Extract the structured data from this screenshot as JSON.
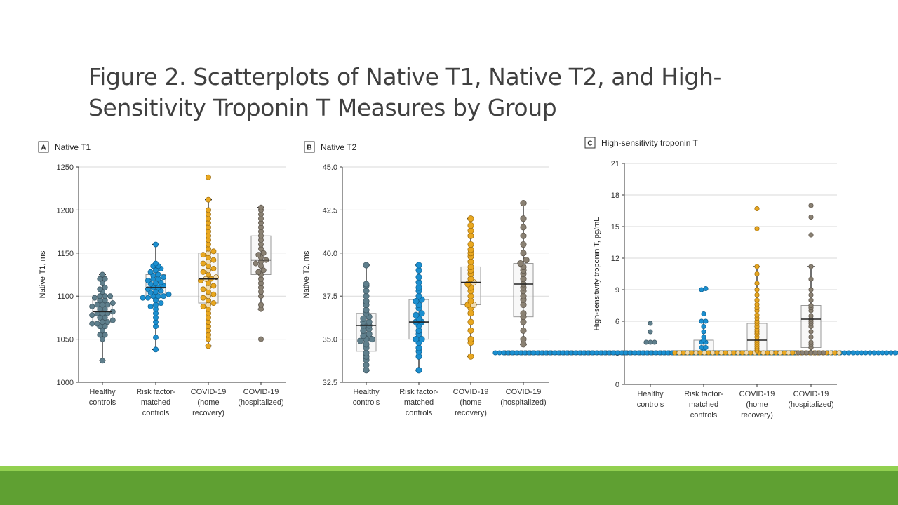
{
  "slide": {
    "title": "Figure 2. Scatterplots of Native T1, Native T2, and High-Sensitivity Troponin T Measures by Group"
  },
  "colors": {
    "accent_light": "#92d050",
    "accent_dark": "#5fa032",
    "grid": "#d9d9d9",
    "healthy": "#5f7f8c",
    "riskfactor": "#1b8fd0",
    "home": "#e9a821",
    "home_light": "#f0dcb3",
    "hosp": "#8a8173",
    "box_fill": "#f2f2f2",
    "box_stroke": "#9a9a9a"
  },
  "chart_data": [
    {
      "type": "scatter",
      "letter": "A",
      "title": "Native T1",
      "ylabel": "Native T1, ms",
      "ylim": [
        1000,
        1250
      ],
      "yticks": [
        1000,
        1050,
        1100,
        1150,
        1200,
        1250
      ],
      "categories": [
        [
          "Healthy",
          "controls"
        ],
        [
          "Risk factor-",
          "matched",
          "controls"
        ],
        [
          "COVID-19",
          "(home",
          "recovery)"
        ],
        [
          "COVID-19",
          "(hospitalized)"
        ]
      ],
      "series": [
        {
          "name": "Healthy controls",
          "min": 1025,
          "max": 1125,
          "q1": 1070,
          "median": 1082,
          "q3": 1100,
          "values": [
            1025,
            1050,
            1055,
            1055,
            1060,
            1065,
            1065,
            1068,
            1068,
            1070,
            1070,
            1072,
            1075,
            1075,
            1078,
            1080,
            1080,
            1080,
            1082,
            1085,
            1085,
            1088,
            1090,
            1090,
            1090,
            1092,
            1095,
            1095,
            1098,
            1100,
            1100,
            1100,
            1105,
            1108,
            1110,
            1115,
            1120,
            1120,
            1125
          ]
        },
        {
          "name": "Risk factor-matched controls",
          "min": 1038,
          "max": 1160,
          "q1": 1098,
          "median": 1110,
          "q3": 1125,
          "values": [
            1038,
            1052,
            1065,
            1070,
            1075,
            1080,
            1085,
            1088,
            1090,
            1092,
            1095,
            1098,
            1098,
            1100,
            1100,
            1100,
            1102,
            1104,
            1105,
            1106,
            1108,
            1110,
            1110,
            1112,
            1114,
            1115,
            1116,
            1118,
            1120,
            1120,
            1122,
            1124,
            1125,
            1128,
            1130,
            1132,
            1135,
            1135,
            1138,
            1160
          ]
        },
        {
          "name": "COVID-19 (home recovery)",
          "min": 1042,
          "max": 1212,
          "q1": 1092,
          "median": 1120,
          "q3": 1150,
          "values": [
            1042,
            1050,
            1055,
            1060,
            1065,
            1070,
            1075,
            1080,
            1085,
            1088,
            1090,
            1092,
            1095,
            1098,
            1100,
            1102,
            1105,
            1108,
            1110,
            1112,
            1115,
            1118,
            1120,
            1120,
            1122,
            1125,
            1128,
            1130,
            1132,
            1135,
            1138,
            1140,
            1142,
            1145,
            1148,
            1150,
            1152,
            1155,
            1160,
            1165,
            1170,
            1175,
            1180,
            1185,
            1190,
            1195,
            1200,
            1212,
            1238
          ]
        },
        {
          "name": "COVID-19 (hospitalized)",
          "min": 1085,
          "max": 1203,
          "q1": 1125,
          "median": 1142,
          "q3": 1170,
          "values": [
            1050,
            1085,
            1090,
            1100,
            1105,
            1110,
            1115,
            1120,
            1125,
            1128,
            1130,
            1135,
            1138,
            1140,
            1142,
            1145,
            1148,
            1150,
            1155,
            1160,
            1165,
            1170,
            1175,
            1180,
            1185,
            1190,
            1195,
            1200,
            1203
          ]
        }
      ]
    },
    {
      "type": "scatter",
      "letter": "B",
      "title": "Native T2",
      "ylabel": "Native T2, ms",
      "ylim": [
        32.5,
        45.0
      ],
      "yticks": [
        "32.5",
        "35.0",
        "37.5",
        "40.0",
        "42.5",
        "45.0"
      ],
      "categories": [
        [
          "Healthy",
          "controls"
        ],
        [
          "Risk factor-",
          "matched",
          "controls"
        ],
        [
          "COVID-19",
          "(home",
          "recovery)"
        ],
        [
          "COVID-19",
          "(hospitalized)"
        ]
      ],
      "series": [
        {
          "name": "Healthy controls",
          "min": 33.2,
          "max": 39.3,
          "q1": 34.3,
          "median": 35.8,
          "q3": 36.5,
          "values": [
            33.2,
            33.5,
            33.8,
            34.0,
            34.2,
            34.5,
            34.7,
            34.9,
            35.0,
            35.0,
            35.2,
            35.3,
            35.5,
            35.6,
            35.8,
            35.8,
            36.0,
            36.0,
            36.2,
            36.3,
            36.5,
            36.7,
            37.0,
            37.2,
            37.5,
            37.8,
            38.1,
            38.2,
            39.3
          ]
        },
        {
          "name": "Risk factor-matched controls",
          "min": 33.2,
          "max": 39.3,
          "q1": 35.0,
          "median": 36.0,
          "q3": 37.3,
          "values": [
            33.2,
            34.0,
            34.3,
            34.5,
            34.8,
            35.0,
            35.0,
            35.3,
            35.5,
            35.8,
            36.0,
            36.0,
            36.2,
            36.4,
            36.5,
            36.8,
            37.0,
            37.2,
            37.3,
            37.5,
            37.8,
            38.0,
            38.3,
            38.6,
            39.0,
            39.3
          ]
        },
        {
          "name": "COVID-19 (home recovery)",
          "min": 34.0,
          "max": 42.0,
          "q1": 37.0,
          "median": 38.3,
          "q3": 39.2,
          "values": [
            34.0,
            34.8,
            35.0,
            35.5,
            36.0,
            36.5,
            36.8,
            37.0,
            37.0,
            37.2,
            37.5,
            37.8,
            38.0,
            38.2,
            38.3,
            38.5,
            38.8,
            39.0,
            39.2,
            39.5,
            39.8,
            40.0,
            40.2,
            40.5,
            41.0,
            41.3,
            41.6,
            42.0
          ]
        },
        {
          "name": "COVID-19 (hospitalized)",
          "min": 34.7,
          "max": 42.9,
          "q1": 36.3,
          "median": 38.2,
          "q3": 39.4,
          "values": [
            34.7,
            35.0,
            35.5,
            36.0,
            36.3,
            36.5,
            37.0,
            37.3,
            37.5,
            37.8,
            38.0,
            38.2,
            38.5,
            38.8,
            39.0,
            39.2,
            39.4,
            39.6,
            40.0,
            40.5,
            41.0,
            41.5,
            42.0,
            42.9
          ]
        }
      ]
    },
    {
      "type": "scatter",
      "letter": "C",
      "title": "High-sensitivity troponin T",
      "ylabel": "High-sensitivity troponin T, pg/mL",
      "ylim": [
        0,
        21
      ],
      "yticks": [
        0,
        3,
        6,
        9,
        12,
        15,
        18,
        21
      ],
      "categories": [
        [
          "Healthy",
          "controls"
        ],
        [
          "Risk factor-",
          "matched",
          "controls"
        ],
        [
          "COVID-19",
          "(home",
          "recovery)"
        ],
        [
          "COVID-19",
          "(hospitalized)"
        ]
      ],
      "series": [
        {
          "name": "Healthy controls",
          "min": 3,
          "max": 3,
          "q1": 3,
          "median": 3,
          "q3": 3,
          "values": [
            3,
            3,
            3,
            3,
            3,
            3,
            3,
            3,
            3,
            3,
            3,
            3,
            3,
            3,
            3,
            3,
            3,
            3,
            3,
            3,
            3,
            3,
            3,
            3,
            3,
            3,
            3,
            3,
            3,
            3,
            3,
            3,
            3,
            3,
            3,
            3,
            3,
            3,
            3,
            3,
            3,
            3,
            3,
            3,
            3,
            3,
            3,
            3,
            3,
            3,
            3,
            3,
            3,
            3,
            3,
            3,
            3,
            3,
            3,
            3,
            3,
            3,
            3,
            3,
            3,
            3,
            3,
            3,
            3,
            3,
            4,
            4,
            4,
            5,
            5.8
          ]
        },
        {
          "name": "Risk factor-matched controls",
          "min": 3,
          "max": 6,
          "q1": 3,
          "median": 3,
          "q3": 4.2,
          "values": [
            3,
            3,
            3,
            3,
            3,
            3,
            3,
            3,
            3,
            3,
            3,
            3,
            3,
            3,
            3,
            3,
            3,
            3,
            3,
            3,
            3,
            3,
            3,
            3,
            3,
            3,
            3,
            3,
            3,
            3,
            3,
            3,
            3,
            3,
            3,
            3,
            3,
            3,
            3,
            3,
            3,
            3,
            3,
            3,
            3,
            3,
            3,
            3,
            3,
            3,
            3,
            3,
            3,
            3,
            3,
            3,
            3,
            3,
            3,
            3,
            3,
            3,
            3,
            3,
            3,
            3,
            3,
            3,
            3,
            3,
            3,
            3,
            3,
            3,
            3,
            3,
            3,
            3,
            3,
            3,
            3,
            3,
            3,
            3,
            3,
            3,
            3,
            3,
            3,
            3,
            3,
            3,
            3,
            3,
            3,
            3,
            3,
            3,
            3,
            3,
            3.3,
            3.5,
            3.5,
            4,
            4,
            4.2,
            4.5,
            5,
            5.5,
            6,
            6,
            6.7,
            9,
            9.1
          ]
        },
        {
          "name": "COVID-19 (home recovery)",
          "min": 3,
          "max": 11.2,
          "q1": 3,
          "median": 4.2,
          "q3": 5.8,
          "values": [
            3,
            3,
            3,
            3,
            3,
            3,
            3,
            3,
            3,
            3,
            3,
            3,
            3,
            3,
            3,
            3,
            3,
            3,
            3,
            3,
            3,
            3,
            3,
            3,
            3,
            3,
            3,
            3,
            3,
            3,
            3,
            3,
            3,
            3,
            3,
            3,
            3,
            3,
            3,
            3,
            3.2,
            3.4,
            3.6,
            3.8,
            4,
            4.2,
            4.5,
            4.8,
            5,
            5.2,
            5.5,
            5.8,
            6,
            6.3,
            6.6,
            7,
            7.3,
            7.6,
            8,
            8.5,
            9,
            9.6,
            10.5,
            11.2,
            14.8,
            16.7
          ]
        },
        {
          "name": "COVID-19 (hospitalized)",
          "min": 3,
          "max": 11.2,
          "q1": 3.5,
          "median": 6.2,
          "q3": 7.5,
          "values": [
            3,
            3,
            3,
            3,
            3,
            3,
            3,
            3.5,
            3.8,
            4,
            4.5,
            5,
            5.5,
            5.8,
            6,
            6.2,
            6.5,
            7,
            7.3,
            7.5,
            8,
            8.5,
            9,
            10,
            11.2,
            14.2,
            15.9,
            17
          ]
        }
      ]
    }
  ]
}
